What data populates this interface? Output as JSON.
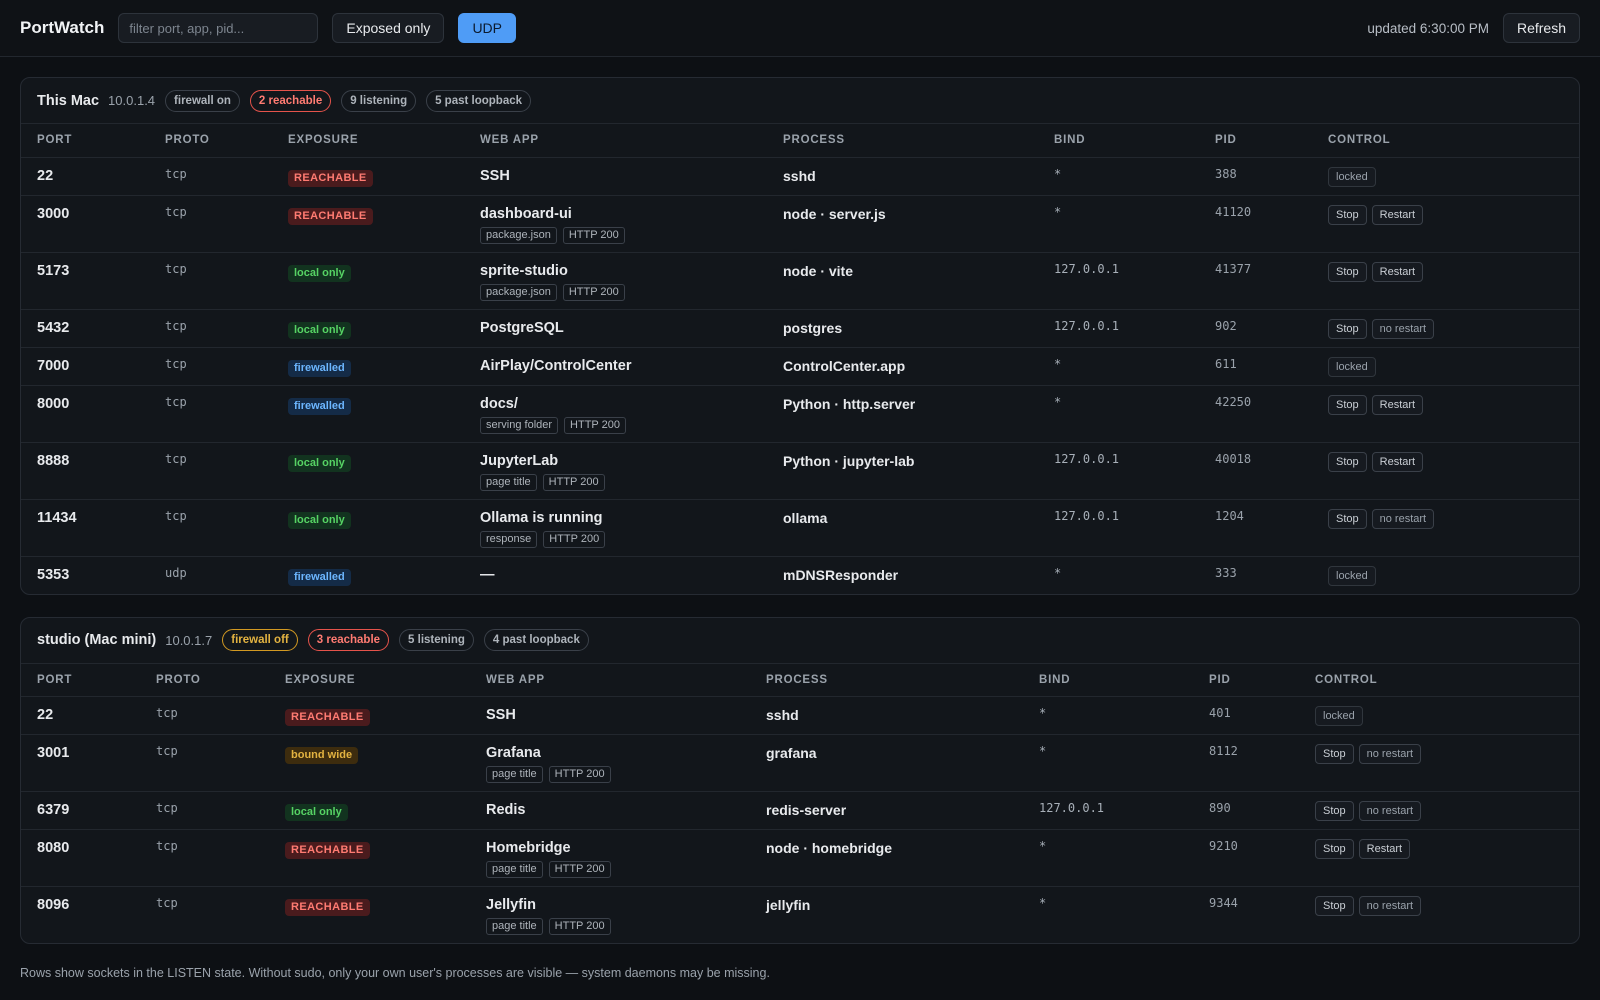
{
  "header": {
    "title": "PortWatch",
    "filter_placeholder": "filter port, app, pid...",
    "exposed_only": "Exposed only",
    "udp": "UDP",
    "updated": "updated 6:30:00 PM",
    "refresh": "Refresh"
  },
  "columns": [
    "PORT",
    "PROTO",
    "EXPOSURE",
    "WEB APP",
    "PROCESS",
    "BIND",
    "PID",
    "CONTROL"
  ],
  "hosts": [
    {
      "name": "This Mac",
      "ip": "10.0.1.4",
      "pills": [
        {
          "text": "firewall on",
          "tone": "neutral"
        },
        {
          "text": "2 reachable",
          "tone": "red"
        },
        {
          "text": "9 listening",
          "tone": "neutral"
        },
        {
          "text": "5 past loopback",
          "tone": "neutral"
        }
      ],
      "rows": [
        {
          "port": "22",
          "proto": "tcp",
          "exposure": "REACHABLE",
          "exp_tone": "reach",
          "app": "SSH",
          "tags": [],
          "process": "sshd",
          "bind": "*",
          "pid": "388",
          "controls": [
            "locked"
          ]
        },
        {
          "port": "3000",
          "proto": "tcp",
          "exposure": "REACHABLE",
          "exp_tone": "reach",
          "app": "dashboard-ui",
          "tags": [
            "package.json",
            "HTTP 200"
          ],
          "process": "node · server.js",
          "bind": "*",
          "pid": "41120",
          "controls": [
            "Stop",
            "Restart"
          ]
        },
        {
          "port": "5173",
          "proto": "tcp",
          "exposure": "local only",
          "exp_tone": "local",
          "app": "sprite-studio",
          "tags": [
            "package.json",
            "HTTP 200"
          ],
          "process": "node · vite",
          "bind": "127.0.0.1",
          "pid": "41377",
          "controls": [
            "Stop",
            "Restart"
          ]
        },
        {
          "port": "5432",
          "proto": "tcp",
          "exposure": "local only",
          "exp_tone": "local",
          "app": "PostgreSQL",
          "tags": [],
          "process": "postgres",
          "bind": "127.0.0.1",
          "pid": "902",
          "controls": [
            "Stop",
            "no restart"
          ]
        },
        {
          "port": "7000",
          "proto": "tcp",
          "exposure": "firewalled",
          "exp_tone": "fire",
          "app": "AirPlay/ControlCenter",
          "tags": [],
          "process": "ControlCenter.app",
          "bind": "*",
          "pid": "611",
          "controls": [
            "locked"
          ]
        },
        {
          "port": "8000",
          "proto": "tcp",
          "exposure": "firewalled",
          "exp_tone": "fire",
          "app": "docs/",
          "tags": [
            "serving folder",
            "HTTP 200"
          ],
          "process": "Python · http.server",
          "bind": "*",
          "pid": "42250",
          "controls": [
            "Stop",
            "Restart"
          ]
        },
        {
          "port": "8888",
          "proto": "tcp",
          "exposure": "local only",
          "exp_tone": "local",
          "app": "JupyterLab",
          "tags": [
            "page title",
            "HTTP 200"
          ],
          "process": "Python · jupyter-lab",
          "bind": "127.0.0.1",
          "pid": "40018",
          "controls": [
            "Stop",
            "Restart"
          ]
        },
        {
          "port": "11434",
          "proto": "tcp",
          "exposure": "local only",
          "exp_tone": "local",
          "app": "Ollama is running",
          "tags": [
            "response",
            "HTTP 200"
          ],
          "process": "ollama",
          "bind": "127.0.0.1",
          "pid": "1204",
          "controls": [
            "Stop",
            "no restart"
          ]
        },
        {
          "port": "5353",
          "proto": "udp",
          "exposure": "firewalled",
          "exp_tone": "fire",
          "app": "—",
          "tags": [],
          "process": "mDNSResponder",
          "bind": "*",
          "pid": "333",
          "controls": [
            "locked"
          ]
        }
      ]
    },
    {
      "name": "studio (Mac mini)",
      "ip": "10.0.1.7",
      "pills": [
        {
          "text": "firewall off",
          "tone": "amber"
        },
        {
          "text": "3 reachable",
          "tone": "red"
        },
        {
          "text": "5 listening",
          "tone": "neutral"
        },
        {
          "text": "4 past loopback",
          "tone": "neutral"
        }
      ],
      "rows": [
        {
          "port": "22",
          "proto": "tcp",
          "exposure": "REACHABLE",
          "exp_tone": "reach",
          "app": "SSH",
          "tags": [],
          "process": "sshd",
          "bind": "*",
          "pid": "401",
          "controls": [
            "locked"
          ]
        },
        {
          "port": "3001",
          "proto": "tcp",
          "exposure": "bound wide",
          "exp_tone": "wide",
          "app": "Grafana",
          "tags": [
            "page title",
            "HTTP 200"
          ],
          "process": "grafana",
          "bind": "*",
          "pid": "8112",
          "controls": [
            "Stop",
            "no restart"
          ]
        },
        {
          "port": "6379",
          "proto": "tcp",
          "exposure": "local only",
          "exp_tone": "local",
          "app": "Redis",
          "tags": [],
          "process": "redis-server",
          "bind": "127.0.0.1",
          "pid": "890",
          "controls": [
            "Stop",
            "no restart"
          ]
        },
        {
          "port": "8080",
          "proto": "tcp",
          "exposure": "REACHABLE",
          "exp_tone": "reach",
          "app": "Homebridge",
          "tags": [
            "page title",
            "HTTP 200"
          ],
          "process": "node · homebridge",
          "bind": "*",
          "pid": "9210",
          "controls": [
            "Stop",
            "Restart"
          ]
        },
        {
          "port": "8096",
          "proto": "tcp",
          "exposure": "REACHABLE",
          "exp_tone": "reach",
          "app": "Jellyfin",
          "tags": [
            "page title",
            "HTTP 200"
          ],
          "process": "jellyfin",
          "bind": "*",
          "pid": "9344",
          "controls": [
            "Stop",
            "no restart"
          ]
        }
      ]
    }
  ],
  "footnote": "Rows show sockets in the LISTEN state. Without sudo, only your own user's processes are visible — system daemons may be missing."
}
